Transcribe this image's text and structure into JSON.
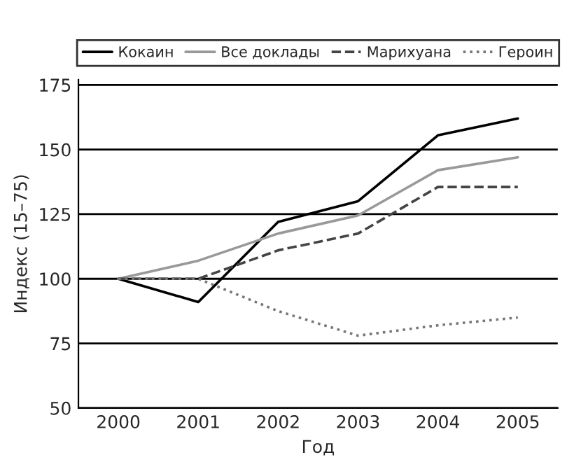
{
  "chart_data": {
    "type": "line",
    "xlabel": "Год",
    "ylabel": "Индекс (15–75)",
    "x": [
      2000,
      2001,
      2002,
      2003,
      2004,
      2005
    ],
    "series": [
      {
        "name": "Кокаин",
        "color": "#000000",
        "line_style": "solid",
        "values": [
          100,
          91,
          122,
          130,
          155.5,
          162
        ]
      },
      {
        "name": "Все доклады",
        "color": "#999999",
        "line_style": "solid",
        "values": [
          100,
          107,
          117.5,
          124.5,
          142,
          147
        ]
      },
      {
        "name": "Марихуана",
        "color": "#444444",
        "line_style": "dashed",
        "values": [
          100,
          100,
          111,
          117.5,
          135.5,
          135.5
        ]
      },
      {
        "name": "Героин",
        "color": "#777777",
        "line_style": "dotted",
        "values": [
          100,
          100,
          87.5,
          78,
          82,
          85
        ]
      }
    ],
    "xlim": [
      1999.5,
      2005.5
    ],
    "xticks": [
      2000,
      2001,
      2002,
      2003,
      2004,
      2005
    ],
    "ylim": [
      50,
      177
    ],
    "yticks": [
      50,
      75,
      100,
      125,
      150,
      175
    ],
    "grid": "y",
    "legend": "top",
    "marker": "none"
  }
}
